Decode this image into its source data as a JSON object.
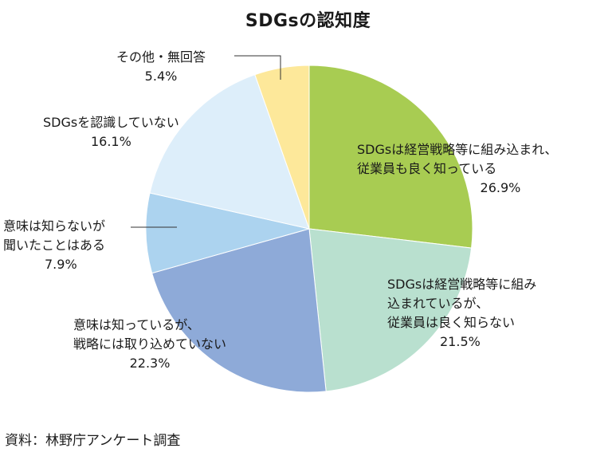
{
  "title": "SDGsの認知度",
  "source": "資料：林野庁アンケート調査",
  "chart_data": {
    "type": "pie",
    "title": "SDGsの認知度",
    "start": "12 o'clock",
    "direction": "clockwise",
    "slices": [
      {
        "label_lines": [
          "SDGsは経営戦略等に組み込まれ、",
          "従業員も良く知っている"
        ],
        "value": 26.9,
        "value_label": "26.9%",
        "color": "#a8cc52"
      },
      {
        "label_lines": [
          "SDGsは経営戦略等に組み",
          "込まれているが、",
          "従業員は良く知らない"
        ],
        "value": 21.5,
        "value_label": "21.5%",
        "color": "#b9e0cf"
      },
      {
        "label_lines": [
          "意味は知っているが、",
          "戦略には取り込めていない"
        ],
        "value": 22.3,
        "value_label": "22.3%",
        "color": "#8eaad8"
      },
      {
        "label_lines": [
          "意味は知らないが",
          "聞いたことはある"
        ],
        "value": 7.9,
        "value_label": "7.9%",
        "color": "#acd3ef"
      },
      {
        "label_lines": [
          "SDGsを認識していない"
        ],
        "value": 16.1,
        "value_label": "16.1%",
        "color": "#ddeefa"
      },
      {
        "label_lines": [
          "その他・無回答"
        ],
        "value": 5.4,
        "value_label": "5.4%",
        "color": "#fde89a"
      }
    ]
  }
}
